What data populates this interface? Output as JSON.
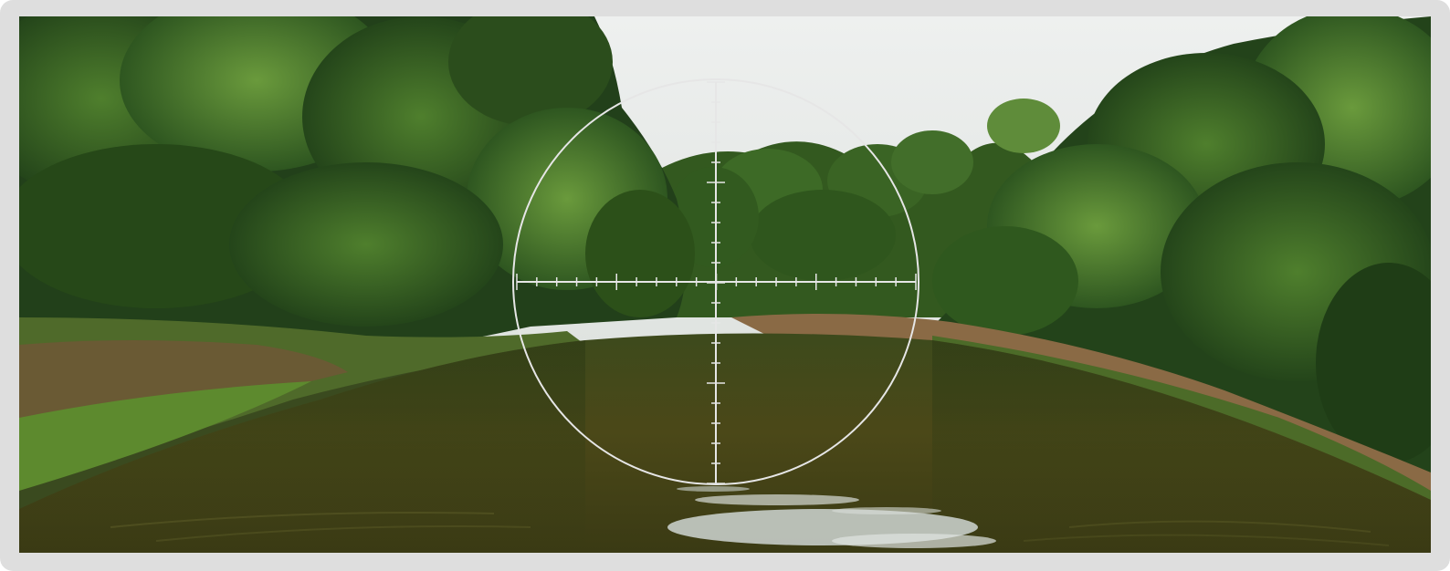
{
  "viewer": {
    "name": "scope-view",
    "scene": "river-through-forest",
    "colors": {
      "frame": "#dedede",
      "sky": "#e9ebea",
      "foliage_dark": "#1f3a14",
      "foliage_mid": "#2f5a1e",
      "foliage_light": "#4f7d2e",
      "water": "#4a4418",
      "bank": "#8a6a45",
      "reticle": "#e6e6e6"
    }
  },
  "reticle": {
    "shape": "circle-crosshair",
    "horizontal_ticks": 20,
    "vertical_ticks": 20
  }
}
